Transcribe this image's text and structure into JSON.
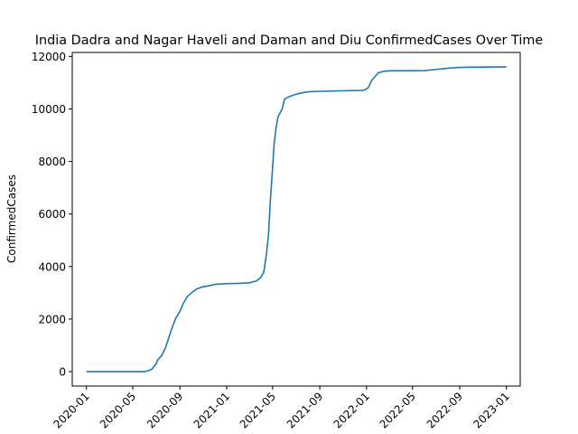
{
  "chart_data": {
    "type": "line",
    "title": "India Dadra and Nagar Haveli and Daman and Diu ConfirmedCases Over Time",
    "xlabel": "",
    "ylabel": "ConfirmedCases",
    "x_ticks": [
      "2020-01",
      "2020-05",
      "2020-09",
      "2021-01",
      "2021-05",
      "2021-09",
      "2022-01",
      "2022-05",
      "2022-09",
      "2023-01"
    ],
    "y_ticks": [
      0,
      2000,
      4000,
      6000,
      8000,
      10000,
      12000
    ],
    "ylim": [
      -550,
      12150
    ],
    "xlim": [
      "2019-11-25",
      "2023-02-06"
    ],
    "grid": false,
    "legend": "none",
    "series": [
      {
        "color": "#1f77b4",
        "points": [
          [
            "2020-01-01",
            0
          ],
          [
            "2020-03-01",
            0
          ],
          [
            "2020-05-01",
            0
          ],
          [
            "2020-06-01",
            0
          ],
          [
            "2020-06-10",
            30
          ],
          [
            "2020-06-20",
            100
          ],
          [
            "2020-07-01",
            300
          ],
          [
            "2020-07-05",
            450
          ],
          [
            "2020-07-15",
            600
          ],
          [
            "2020-07-25",
            900
          ],
          [
            "2020-08-01",
            1200
          ],
          [
            "2020-08-10",
            1600
          ],
          [
            "2020-08-20",
            2000
          ],
          [
            "2020-09-01",
            2300
          ],
          [
            "2020-09-10",
            2600
          ],
          [
            "2020-09-20",
            2850
          ],
          [
            "2020-10-01",
            3000
          ],
          [
            "2020-10-15",
            3150
          ],
          [
            "2020-11-01",
            3230
          ],
          [
            "2020-11-20",
            3280
          ],
          [
            "2020-12-01",
            3320
          ],
          [
            "2021-01-01",
            3350
          ],
          [
            "2021-02-01",
            3360
          ],
          [
            "2021-03-01",
            3380
          ],
          [
            "2021-03-20",
            3450
          ],
          [
            "2021-04-01",
            3600
          ],
          [
            "2021-04-08",
            3800
          ],
          [
            "2021-04-15",
            4500
          ],
          [
            "2021-04-20",
            5200
          ],
          [
            "2021-04-25",
            6500
          ],
          [
            "2021-05-01",
            7800
          ],
          [
            "2021-05-05",
            8700
          ],
          [
            "2021-05-10",
            9300
          ],
          [
            "2021-05-15",
            9700
          ],
          [
            "2021-05-22",
            9900
          ],
          [
            "2021-05-26",
            10000
          ],
          [
            "2021-06-01",
            10380
          ],
          [
            "2021-06-15",
            10480
          ],
          [
            "2021-07-01",
            10560
          ],
          [
            "2021-07-20",
            10620
          ],
          [
            "2021-08-01",
            10650
          ],
          [
            "2021-09-01",
            10670
          ],
          [
            "2021-10-01",
            10680
          ],
          [
            "2021-12-01",
            10700
          ],
          [
            "2021-12-25",
            10710
          ],
          [
            "2022-01-05",
            10800
          ],
          [
            "2022-01-15",
            11100
          ],
          [
            "2022-02-01",
            11380
          ],
          [
            "2022-02-15",
            11430
          ],
          [
            "2022-03-01",
            11450
          ],
          [
            "2022-06-01",
            11460
          ],
          [
            "2022-07-01",
            11500
          ],
          [
            "2022-08-01",
            11550
          ],
          [
            "2022-09-01",
            11580
          ],
          [
            "2022-10-01",
            11590
          ],
          [
            "2023-01-01",
            11600
          ]
        ]
      }
    ]
  }
}
